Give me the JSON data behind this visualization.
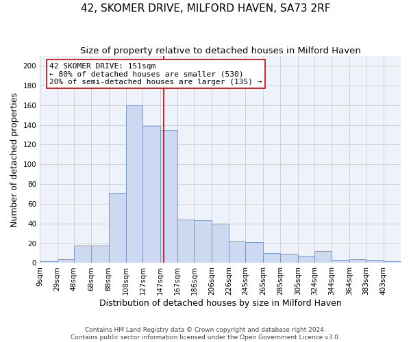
{
  "title": "42, SKOMER DRIVE, MILFORD HAVEN, SA73 2RF",
  "subtitle": "Size of property relative to detached houses in Milford Haven",
  "xlabel": "Distribution of detached houses by size in Milford Haven",
  "ylabel": "Number of detached properties",
  "footnote1": "Contains HM Land Registry data © Crown copyright and database right 2024.",
  "footnote2": "Contains public sector information licensed under the Open Government Licence v3.0.",
  "bin_labels": [
    "9sqm",
    "29sqm",
    "48sqm",
    "68sqm",
    "88sqm",
    "108sqm",
    "127sqm",
    "147sqm",
    "167sqm",
    "186sqm",
    "206sqm",
    "226sqm",
    "245sqm",
    "265sqm",
    "285sqm",
    "305sqm",
    "324sqm",
    "344sqm",
    "364sqm",
    "383sqm",
    "403sqm"
  ],
  "bin_edges": [
    9,
    29,
    48,
    68,
    88,
    108,
    127,
    147,
    167,
    186,
    206,
    226,
    245,
    265,
    285,
    305,
    324,
    344,
    364,
    383,
    403
  ],
  "bar_heights": [
    2,
    4,
    18,
    18,
    71,
    160,
    139,
    135,
    44,
    43,
    40,
    22,
    21,
    10,
    9,
    7,
    12,
    3,
    4,
    3,
    2
  ],
  "bar_color": "#ccd9f0",
  "bar_edge_color": "#7799cc",
  "property_value": 151,
  "property_line_color": "#cc0000",
  "annotation_line1": "42 SKOMER DRIVE: 151sqm",
  "annotation_line2": "← 80% of detached houses are smaller (530)",
  "annotation_line3": "20% of semi-detached houses are larger (135) →",
  "annotation_box_color": "#ffffff",
  "annotation_box_edge_color": "#cc0000",
  "ylim": [
    0,
    210
  ],
  "yticks": [
    0,
    20,
    40,
    60,
    80,
    100,
    120,
    140,
    160,
    180,
    200
  ],
  "grid_color": "#cccccc",
  "bg_color": "#eef2fa",
  "title_fontsize": 11,
  "subtitle_fontsize": 9.5,
  "axis_label_fontsize": 9,
  "tick_fontsize": 7.5,
  "annotation_fontsize": 8,
  "footnote_fontsize": 6.5
}
